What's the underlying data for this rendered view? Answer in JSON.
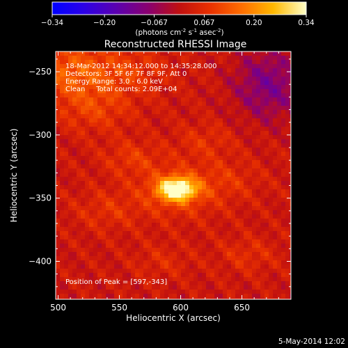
{
  "chart_data": {
    "type": "heatmap",
    "title": "Reconstructed RHESSI Image",
    "xlabel": "Heliocentric X (arcsec)",
    "ylabel": "Heliocentric Y (arcsec)",
    "xlim": [
      498,
      690
    ],
    "ylim": [
      -430,
      -234
    ],
    "x_ticks": [
      "500",
      "550",
      "600",
      "650"
    ],
    "y_ticks": [
      "-250",
      "-300",
      "-350",
      "-400"
    ],
    "colorbar": {
      "min": -0.34,
      "max": 0.34,
      "tick_labels": [
        "-0.34",
        "-0.20",
        "-0.067",
        "0.067",
        "0.20",
        "0.34"
      ],
      "label_base": "(photons cm",
      "label_exp1": "-2",
      "label_mid1": " s",
      "label_exp2": "-1",
      "label_mid2": " asec",
      "label_exp3": "-2",
      "label_end": ")"
    },
    "info_lines": [
      "18-Mar-2012 14:34:12.000 to 14:35:28.000",
      "Detectors: 3F 5F 6F 7F 8F 9F, Att 0",
      "Energy Range: 3.0 - 6.0 keV",
      "Clean     Total counts: 2.09E+04"
    ],
    "peak_label": "Position of Peak = [597,-343]",
    "peak": [
      597,
      -343
    ],
    "sources": [
      {
        "x": 597,
        "y": -343,
        "amp": 0.34,
        "sigma": 9
      },
      {
        "x": 598,
        "y": -344,
        "amp": 0.08,
        "sigma": 22
      },
      {
        "x": 510,
        "y": -250,
        "amp": 0.12,
        "sigma": 22
      },
      {
        "x": 530,
        "y": -280,
        "amp": 0.07,
        "sigma": 18
      },
      {
        "x": 560,
        "y": -250,
        "amp": 0.06,
        "sigma": 18
      },
      {
        "x": 560,
        "y": -318,
        "amp": 0.06,
        "sigma": 14
      },
      {
        "x": 640,
        "y": -335,
        "amp": 0.04,
        "sigma": 16
      },
      {
        "x": 540,
        "y": -360,
        "amp": 0.05,
        "sigma": 16
      },
      {
        "x": 620,
        "y": -305,
        "amp": 0.05,
        "sigma": 14
      },
      {
        "x": 655,
        "y": -395,
        "amp": 0.05,
        "sigma": 14
      },
      {
        "x": 585,
        "y": -400,
        "amp": 0.04,
        "sigma": 14
      }
    ],
    "negative_region": {
      "x": 672,
      "y": -260,
      "amp": -0.12,
      "sigma": 28
    },
    "background_ripple": 0.035
  },
  "footer": {
    "date": "5-May-2014 12:02"
  }
}
